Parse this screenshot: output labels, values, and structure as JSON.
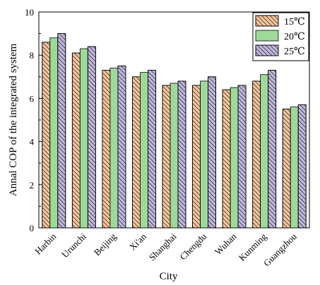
{
  "chart_data": {
    "type": "bar",
    "title": "",
    "xlabel": "City",
    "ylabel": "Annal  COP of the integrated system",
    "ylim": [
      0,
      10
    ],
    "yticks": [
      0,
      2,
      4,
      6,
      8,
      10
    ],
    "grid": false,
    "legend_position": "top-right",
    "categories": [
      "Harbin",
      "Urunchi",
      "Beijing",
      "Xi'an",
      "Shanghai",
      "Chengdu",
      "Wuhan",
      "Kunming",
      "Guangzhou"
    ],
    "series": [
      {
        "name": "15℃",
        "color": "#f6c49a",
        "hatch": "diagonal-down",
        "values": [
          8.6,
          8.1,
          7.3,
          7.0,
          6.6,
          6.6,
          6.4,
          6.8,
          5.5
        ]
      },
      {
        "name": "20℃",
        "color": "#9ed99a",
        "hatch": "none",
        "values": [
          8.8,
          8.3,
          7.4,
          7.2,
          6.7,
          6.8,
          6.5,
          7.1,
          5.6
        ]
      },
      {
        "name": "25℃",
        "color": "#bfb6df",
        "hatch": "diagonal-down",
        "values": [
          9.0,
          8.4,
          7.5,
          7.3,
          6.8,
          7.0,
          6.6,
          7.3,
          5.7
        ]
      }
    ]
  }
}
